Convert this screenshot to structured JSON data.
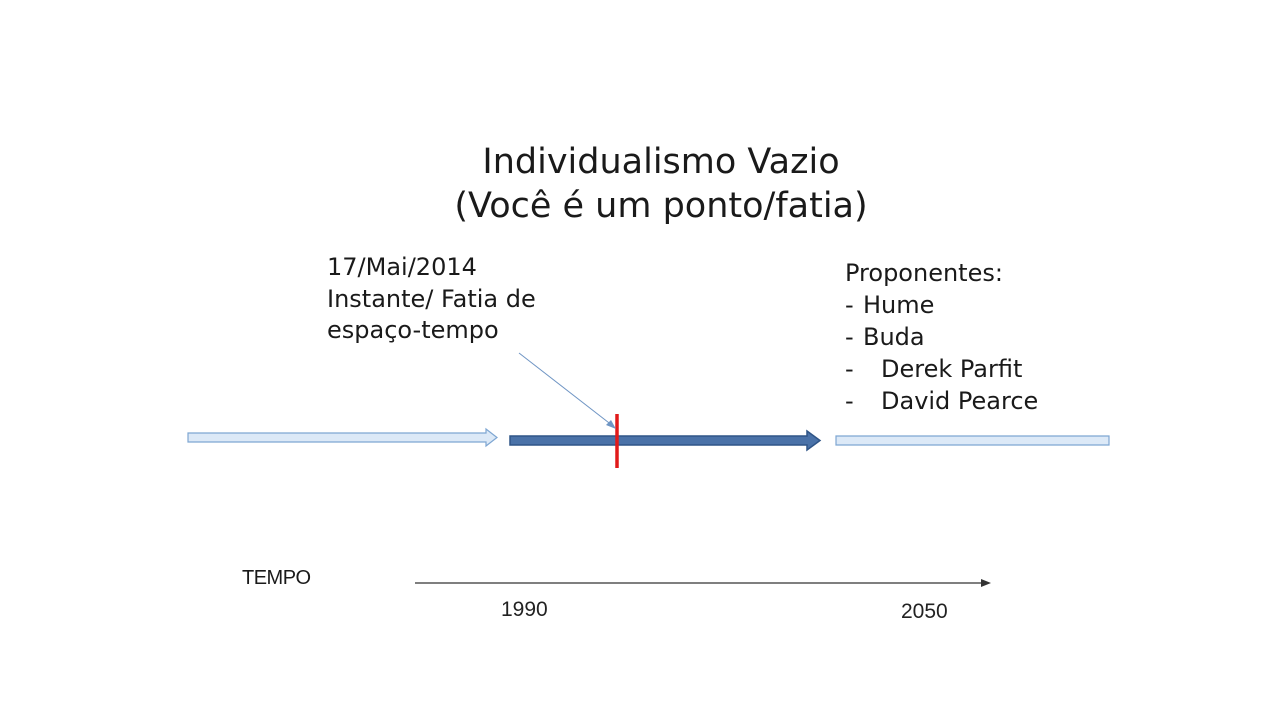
{
  "title": {
    "line1": "Individualismo Vazio",
    "line2": "(Você é um ponto/fatia)"
  },
  "annotation": {
    "line1": "17/Mai/2014",
    "line2": "Instante/ Fatia de",
    "line3": "espaço-tempo"
  },
  "proponents": {
    "heading": "Proponentes:",
    "items": [
      {
        "dash": "-",
        "name": "Hume"
      },
      {
        "dash": "-",
        "name": "Buda"
      },
      {
        "dash": "-",
        "name": "Derek Parfit"
      },
      {
        "dash": "-",
        "name": "David Pearce"
      }
    ]
  },
  "axis": {
    "label": "TEMPO",
    "start_label": "1990",
    "end_label": "2050"
  },
  "colors": {
    "past_future_arrow_fill": "#dce9f7",
    "past_future_arrow_stroke": "#7ea6d2",
    "life_arrow_fill": "#4a72a8",
    "life_arrow_stroke": "#2f5587",
    "present_marker": "#e11a1a",
    "pointer_line": "#6f95c4",
    "axis_line": "#333333"
  }
}
